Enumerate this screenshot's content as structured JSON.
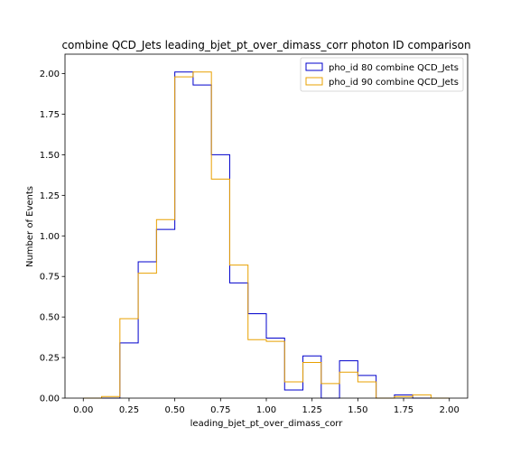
{
  "chart_data": {
    "type": "histogram-step",
    "title": "combine QCD_Jets leading_bjet_pt_over_dimass_corr photon ID comparison",
    "xlabel": "leading_bjet_pt_over_dimass_corr",
    "ylabel": "Number of Events",
    "xlim": [
      -0.1,
      2.1
    ],
    "ylim": [
      0,
      2.12
    ],
    "xticks": [
      0.0,
      0.25,
      0.5,
      0.75,
      1.0,
      1.25,
      1.5,
      1.75,
      2.0
    ],
    "xtick_labels": [
      "0.00",
      "0.25",
      "0.50",
      "0.75",
      "1.00",
      "1.25",
      "1.50",
      "1.75",
      "2.00"
    ],
    "yticks": [
      0.0,
      0.25,
      0.5,
      0.75,
      1.0,
      1.25,
      1.5,
      1.75,
      2.0
    ],
    "ytick_labels": [
      "0.00",
      "0.25",
      "0.50",
      "0.75",
      "1.00",
      "1.25",
      "1.50",
      "1.75",
      "2.00"
    ],
    "bin_edges": [
      0.0,
      0.1,
      0.2,
      0.3,
      0.4,
      0.5,
      0.6,
      0.7,
      0.8,
      0.9,
      1.0,
      1.1,
      1.2,
      1.3,
      1.4,
      1.5,
      1.6,
      1.7,
      1.8,
      1.9,
      2.0
    ],
    "legend_position": "top-right",
    "series": [
      {
        "name": "pho_id 80 combine QCD_Jets",
        "color": "#0000cc",
        "values": [
          0.0,
          0.0,
          0.34,
          0.84,
          1.04,
          2.01,
          1.93,
          1.5,
          0.71,
          0.52,
          0.37,
          0.05,
          0.26,
          0.0,
          0.23,
          0.14,
          0.0,
          0.02,
          0.0,
          0.0
        ]
      },
      {
        "name": "pho_id 90 combine QCD_Jets",
        "color": "#e8a000",
        "values": [
          0.0,
          0.01,
          0.49,
          0.77,
          1.1,
          1.98,
          2.01,
          1.35,
          0.82,
          0.36,
          0.35,
          0.1,
          0.22,
          0.09,
          0.16,
          0.1,
          0.0,
          0.01,
          0.02,
          0.0
        ]
      }
    ]
  }
}
